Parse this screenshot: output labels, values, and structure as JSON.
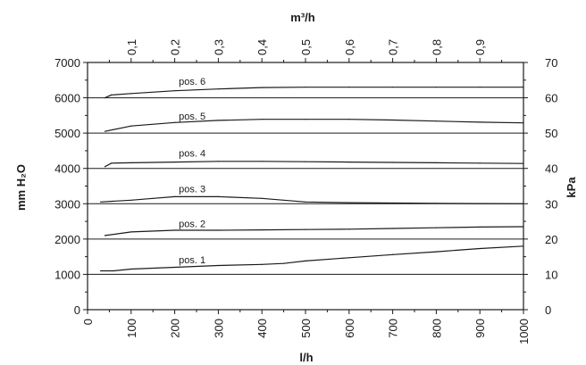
{
  "chart_data": {
    "type": "line",
    "title": "",
    "xlabel": "l/h",
    "ylabel": "mm H₂O",
    "x2label": "m³/h",
    "y2label": "kPa",
    "xlim": [
      0,
      1000
    ],
    "ylim": [
      0,
      7000
    ],
    "x2lim": [
      0,
      1
    ],
    "y2lim": [
      0,
      70
    ],
    "grid": "horizontal",
    "xticks": [
      0,
      100,
      200,
      300,
      400,
      500,
      600,
      700,
      800,
      900,
      1000
    ],
    "xtick_labels": [
      "0",
      "100",
      "200",
      "300",
      "400",
      "500",
      "600",
      "700",
      "800",
      "900",
      "1000"
    ],
    "yticks": [
      0,
      1000,
      2000,
      3000,
      4000,
      5000,
      6000,
      7000
    ],
    "ytick_labels": [
      "0",
      "1000",
      "2000",
      "3000",
      "4000",
      "5000",
      "6000",
      "7000"
    ],
    "x2ticks": [
      0.1,
      0.2,
      0.3,
      0.4,
      0.5,
      0.6,
      0.7,
      0.8,
      0.9
    ],
    "x2tick_labels": [
      "0,1",
      "0,2",
      "0,3",
      "0,4",
      "0,5",
      "0,6",
      "0,7",
      "0,8",
      "0,9"
    ],
    "y2ticks": [
      0,
      10,
      20,
      30,
      40,
      50,
      60,
      70
    ],
    "y2tick_labels": [
      "0",
      "10",
      "20",
      "30",
      "40",
      "50",
      "60",
      "70"
    ],
    "series": [
      {
        "name": "pos. 1",
        "x": [
          30,
          60,
          100,
          200,
          300,
          400,
          450,
          500,
          600,
          700,
          800,
          900,
          1000
        ],
        "y": [
          1100,
          1100,
          1150,
          1200,
          1250,
          1280,
          1310,
          1380,
          1470,
          1560,
          1640,
          1730,
          1800
        ],
        "label_at": [
          240,
          1420
        ]
      },
      {
        "name": "pos. 2",
        "x": [
          40,
          100,
          200,
          300,
          400,
          500,
          600,
          700,
          800,
          900,
          1000
        ],
        "y": [
          2100,
          2200,
          2250,
          2250,
          2260,
          2270,
          2280,
          2300,
          2320,
          2340,
          2350
        ],
        "label_at": [
          240,
          2440
        ]
      },
      {
        "name": "pos. 3",
        "x": [
          30,
          100,
          150,
          200,
          300,
          400,
          500,
          600,
          700,
          800,
          900,
          1000
        ],
        "y": [
          3050,
          3100,
          3150,
          3200,
          3200,
          3150,
          3050,
          3030,
          3020,
          3010,
          3005,
          3000
        ],
        "label_at": [
          240,
          3420
        ]
      },
      {
        "name": "pos. 4",
        "x": [
          40,
          55,
          100,
          200,
          300,
          400,
          500,
          600,
          700,
          800,
          900,
          1000
        ],
        "y": [
          4050,
          4150,
          4160,
          4180,
          4200,
          4200,
          4190,
          4180,
          4170,
          4160,
          4150,
          4140
        ],
        "label_at": [
          240,
          4440
        ]
      },
      {
        "name": "pos. 5",
        "x": [
          40,
          100,
          200,
          300,
          400,
          500,
          600,
          700,
          800,
          900,
          1000
        ],
        "y": [
          5050,
          5200,
          5300,
          5360,
          5390,
          5390,
          5390,
          5370,
          5340,
          5310,
          5290
        ],
        "label_at": [
          240,
          5480
        ]
      },
      {
        "name": "pos. 6",
        "x": [
          40,
          55,
          100,
          200,
          300,
          400,
          500,
          600,
          700,
          800,
          900,
          1000
        ],
        "y": [
          6000,
          6080,
          6120,
          6200,
          6250,
          6290,
          6300,
          6300,
          6300,
          6300,
          6300,
          6300
        ],
        "label_at": [
          240,
          6470
        ]
      }
    ]
  }
}
